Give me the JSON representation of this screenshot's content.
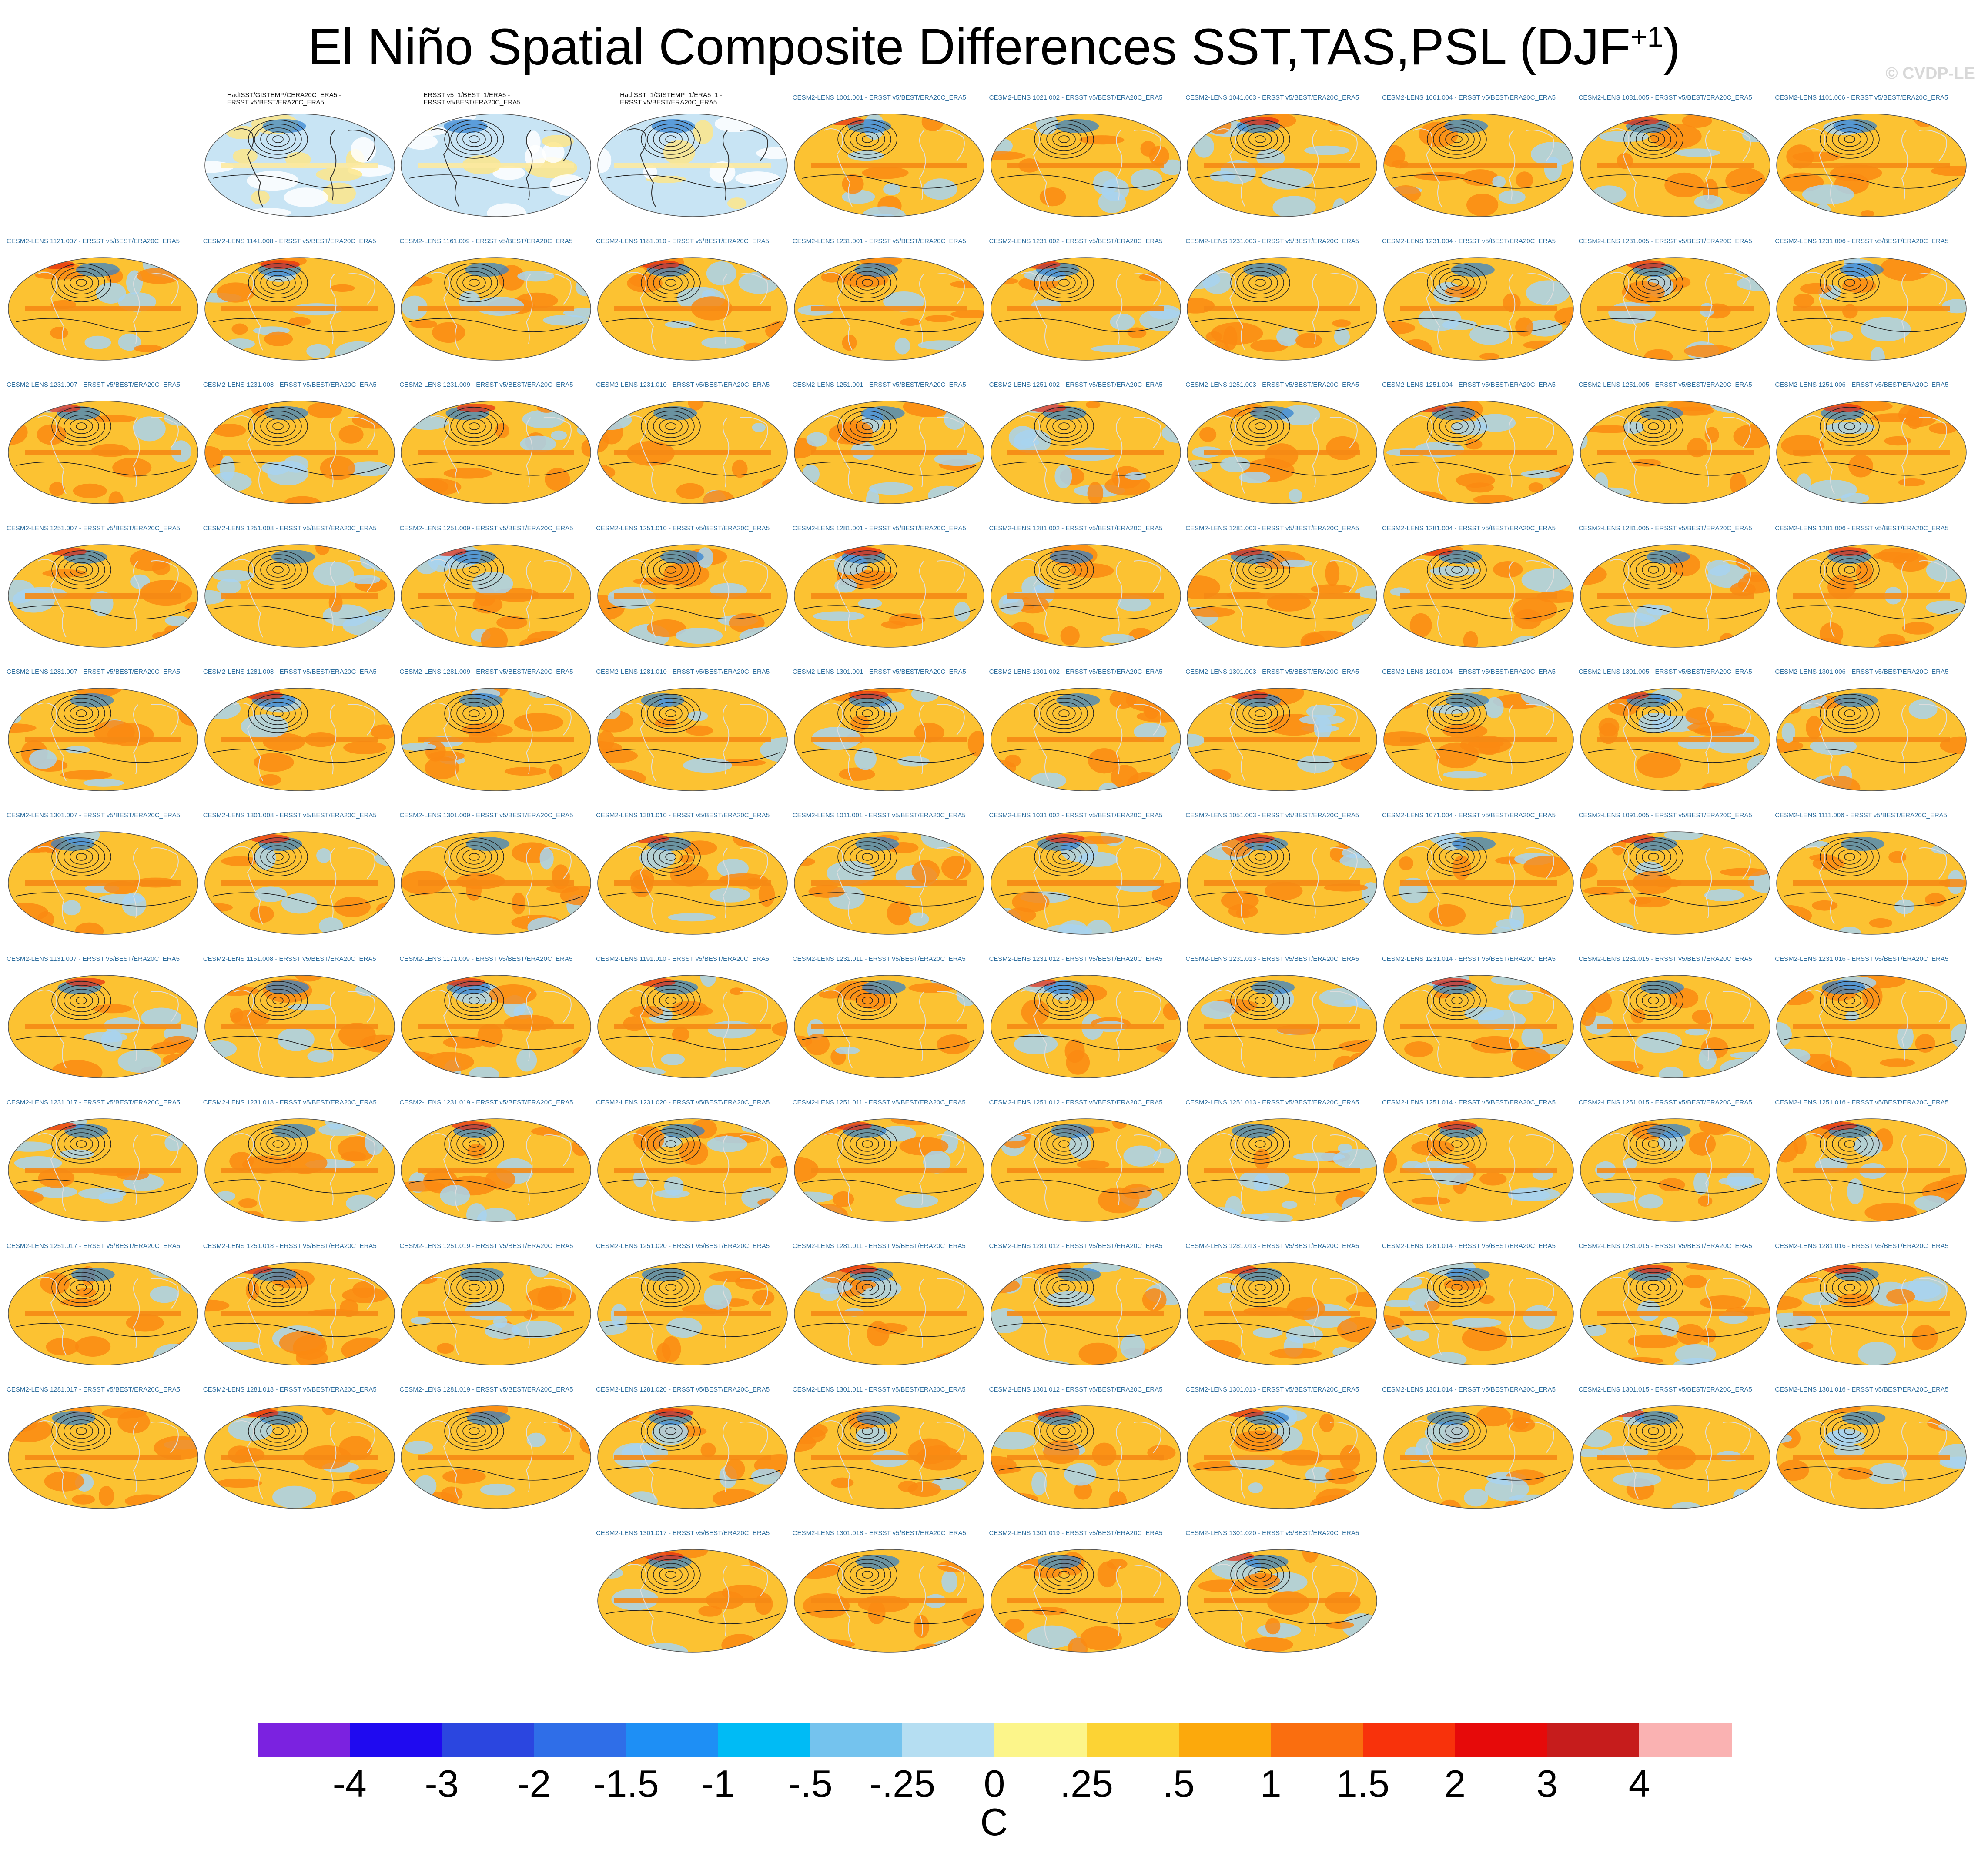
{
  "title": "El Niño Spatial Composite Differences SST,TAS,PSL (DJF",
  "title_sup": "+1",
  "title_end": ")",
  "credit": "© CVDP-LE",
  "observations": [
    {
      "line1": "HadISST/GISTEMP/CERA20C_ERA5 -",
      "line2": "ERSST v5/BEST/ERA20C_ERA5"
    },
    {
      "line1": "ERSST v5_1/BEST_1/ERA5 -",
      "line2": "ERSST v5/BEST/ERA20C_ERA5"
    },
    {
      "line1": "HadISST_1/GISTEMP_1/ERA5_1 -",
      "line2": "ERSST v5/BEST/ERA20C_ERA5"
    }
  ],
  "label_suffix": " - ERSST v5/BEST/ERA20C_ERA5",
  "members": [
    "CESM2-LENS 1001.001",
    "CESM2-LENS 1021.002",
    "CESM2-LENS 1041.003",
    "CESM2-LENS 1061.004",
    "CESM2-LENS 1081.005",
    "CESM2-LENS 1101.006",
    "CESM2-LENS 1121.007",
    "CESM2-LENS 1141.008",
    "CESM2-LENS 1161.009",
    "CESM2-LENS 1181.010",
    "CESM2-LENS 1231.001",
    "CESM2-LENS 1231.002",
    "CESM2-LENS 1231.003",
    "CESM2-LENS 1231.004",
    "CESM2-LENS 1231.005",
    "CESM2-LENS 1231.006",
    "CESM2-LENS 1231.007",
    "CESM2-LENS 1231.008",
    "CESM2-LENS 1231.009",
    "CESM2-LENS 1231.010",
    "CESM2-LENS 1251.001",
    "CESM2-LENS 1251.002",
    "CESM2-LENS 1251.003",
    "CESM2-LENS 1251.004",
    "CESM2-LENS 1251.005",
    "CESM2-LENS 1251.006",
    "CESM2-LENS 1251.007",
    "CESM2-LENS 1251.008",
    "CESM2-LENS 1251.009",
    "CESM2-LENS 1251.010",
    "CESM2-LENS 1281.001",
    "CESM2-LENS 1281.002",
    "CESM2-LENS 1281.003",
    "CESM2-LENS 1281.004",
    "CESM2-LENS 1281.005",
    "CESM2-LENS 1281.006",
    "CESM2-LENS 1281.007",
    "CESM2-LENS 1281.008",
    "CESM2-LENS 1281.009",
    "CESM2-LENS 1281.010",
    "CESM2-LENS 1301.001",
    "CESM2-LENS 1301.002",
    "CESM2-LENS 1301.003",
    "CESM2-LENS 1301.004",
    "CESM2-LENS 1301.005",
    "CESM2-LENS 1301.006",
    "CESM2-LENS 1301.007",
    "CESM2-LENS 1301.008",
    "CESM2-LENS 1301.009",
    "CESM2-LENS 1301.010",
    "CESM2-LENS 1011.001",
    "CESM2-LENS 1031.002",
    "CESM2-LENS 1051.003",
    "CESM2-LENS 1071.004",
    "CESM2-LENS 1091.005",
    "CESM2-LENS 1111.006",
    "CESM2-LENS 1131.007",
    "CESM2-LENS 1151.008",
    "CESM2-LENS 1171.009",
    "CESM2-LENS 1191.010",
    "CESM2-LENS 1231.011",
    "CESM2-LENS 1231.012",
    "CESM2-LENS 1231.013",
    "CESM2-LENS 1231.014",
    "CESM2-LENS 1231.015",
    "CESM2-LENS 1231.016",
    "CESM2-LENS 1231.017",
    "CESM2-LENS 1231.018",
    "CESM2-LENS 1231.019",
    "CESM2-LENS 1231.020",
    "CESM2-LENS 1251.011",
    "CESM2-LENS 1251.012",
    "CESM2-LENS 1251.013",
    "CESM2-LENS 1251.014",
    "CESM2-LENS 1251.015",
    "CESM2-LENS 1251.016",
    "CESM2-LENS 1251.017",
    "CESM2-LENS 1251.018",
    "CESM2-LENS 1251.019",
    "CESM2-LENS 1251.020",
    "CESM2-LENS 1281.011",
    "CESM2-LENS 1281.012",
    "CESM2-LENS 1281.013",
    "CESM2-LENS 1281.014",
    "CESM2-LENS 1281.015",
    "CESM2-LENS 1281.016",
    "CESM2-LENS 1281.017",
    "CESM2-LENS 1281.018",
    "CESM2-LENS 1281.019",
    "CESM2-LENS 1281.020",
    "CESM2-LENS 1301.011",
    "CESM2-LENS 1301.012",
    "CESM2-LENS 1301.013",
    "CESM2-LENS 1301.014",
    "CESM2-LENS 1301.015",
    "CESM2-LENS 1301.016",
    "CESM2-LENS 1301.017",
    "CESM2-LENS 1301.018",
    "CESM2-LENS 1301.019",
    "CESM2-LENS 1301.020"
  ],
  "colorbar": {
    "colors": [
      "#7b22e0",
      "#1f0af0",
      "#2b46e0",
      "#2f6ee8",
      "#1e8ff5",
      "#00bbf5",
      "#74c3ee",
      "#b5def2",
      "#fcf58a",
      "#fcd334",
      "#fca90c",
      "#fa6e0f",
      "#f8320b",
      "#e60a0a",
      "#c61c1c",
      "#fab2b2"
    ],
    "ticks": [
      "-4",
      "-3",
      "-2",
      "-1.5",
      "-1",
      "-.5",
      "-.25",
      "0",
      ".25",
      ".5",
      "1",
      "1.5",
      "2",
      "3",
      "4"
    ],
    "units": "C"
  },
  "map_colors": {
    "obs_fill": "#c8e4f4",
    "model_fill": "#fcc232",
    "warm": "#fa8a12",
    "cool": "#a8d4f0",
    "neg": "#2c7fd0",
    "pos": "#e62a10"
  }
}
